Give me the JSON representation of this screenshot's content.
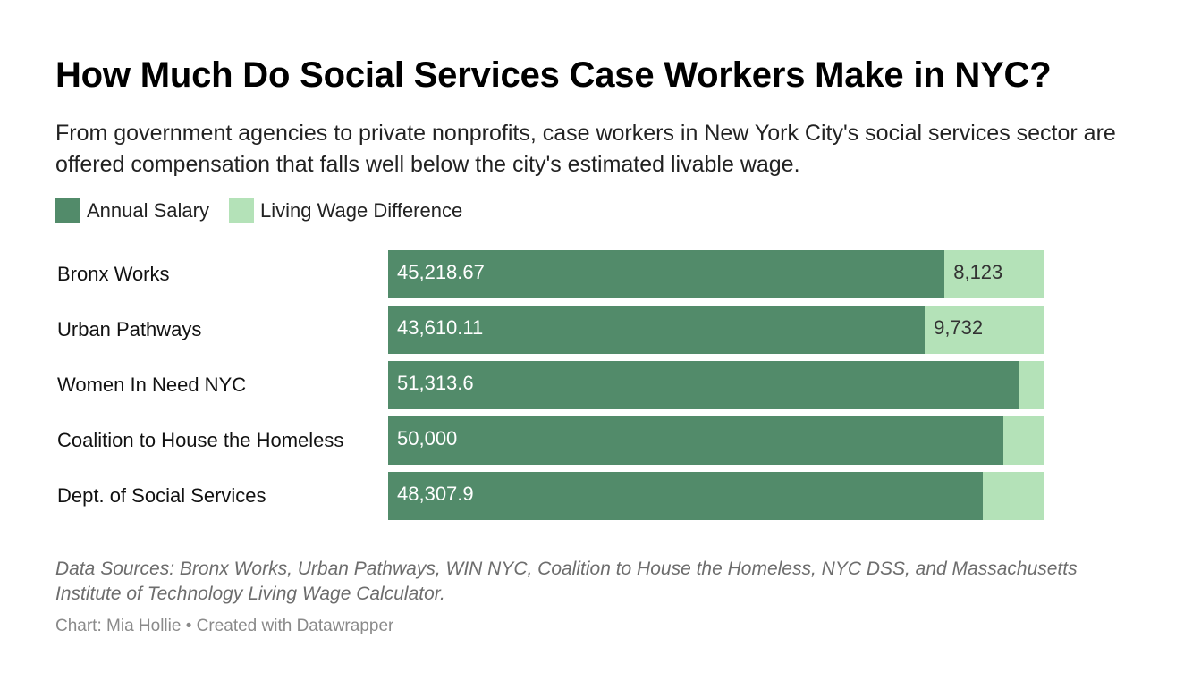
{
  "title": "How Much Do Social Services Case Workers Make in NYC?",
  "subtitle": "From government agencies to private nonprofits, case workers in New York City's social services sector are offered compensation that falls well below the city's estimated livable wage.",
  "legend": [
    {
      "label": "Annual Salary",
      "color": "#528b6a"
    },
    {
      "label": "Living Wage Difference",
      "color": "#b4e2b8"
    }
  ],
  "chart_data": {
    "type": "bar",
    "orientation": "horizontal",
    "stacked": true,
    "categories": [
      "Bronx Works",
      "Urban Pathways",
      "Women In Need NYC",
      "Coalition to House the Homeless",
      "Dept. of Social Services"
    ],
    "series": [
      {
        "name": "Annual Salary",
        "color": "#528b6a",
        "values": [
          45218.67,
          43610.11,
          51313.6,
          50000,
          48307.9
        ],
        "labels": [
          "45,218.67",
          "43,610.11",
          "51,313.6",
          "50,000",
          "48,307.9"
        ]
      },
      {
        "name": "Living Wage Difference",
        "color": "#b4e2b8",
        "values": [
          8123,
          9732,
          2028,
          3342,
          5034
        ],
        "labels": [
          "8,123",
          "9,732",
          "",
          "",
          ""
        ]
      }
    ],
    "xlim": [
      0,
      53342
    ]
  },
  "notes": "Data Sources: Bronx Works, Urban Pathways, WIN NYC, Coalition to House the Homeless, NYC DSS, and Massachusetts Institute of Technology Living Wage Calculator.",
  "byline": "Chart: Mia Hollie • Created with Datawrapper"
}
